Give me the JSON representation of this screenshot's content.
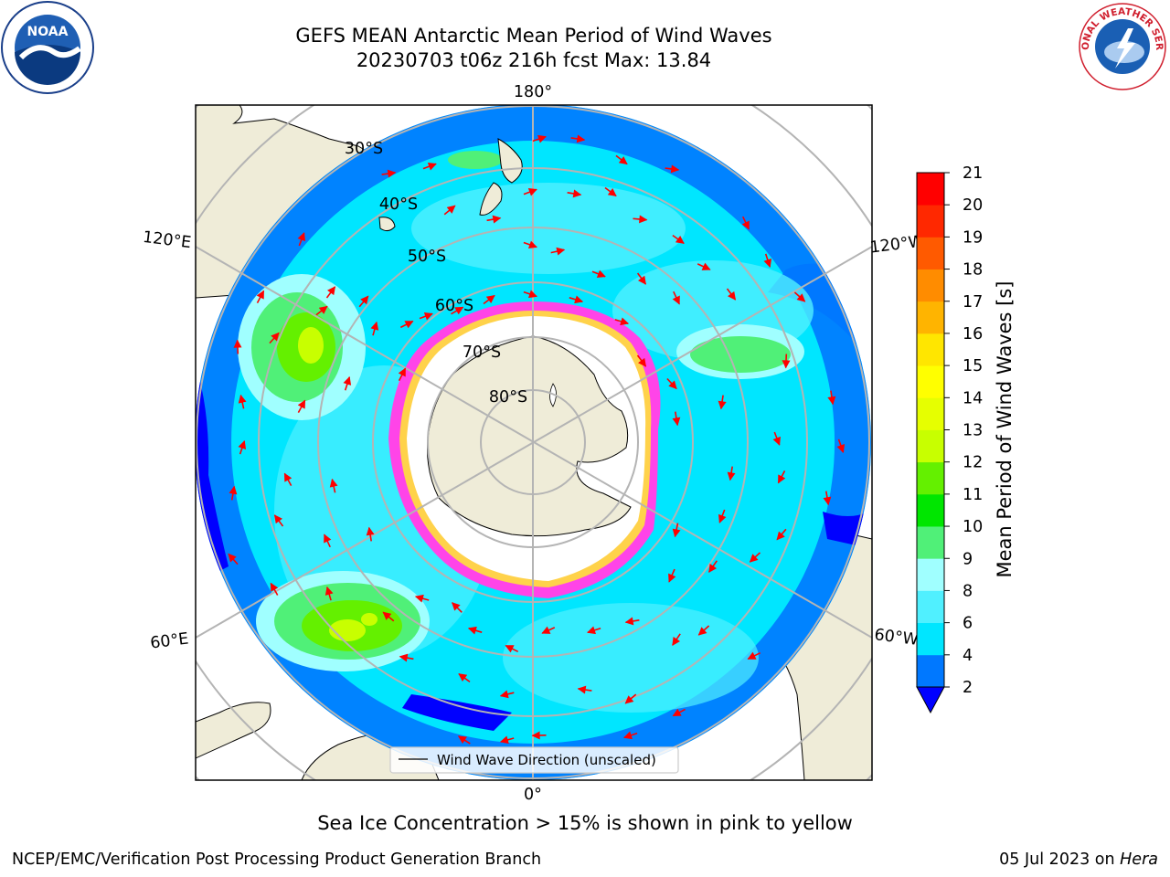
{
  "header": {
    "title_line1": "GEFS MEAN Antarctic Mean Period of Wind Waves",
    "title_line2": "20230703 t06z 216h fcst   Max: 13.84"
  },
  "logos": {
    "left": {
      "icon": "noaa-logo-icon",
      "text": "NOAA"
    },
    "right": {
      "icon": "nws-logo-icon",
      "ring_text": "NATIONAL WEATHER SERVICE"
    }
  },
  "map": {
    "projection": "south-polar-stereographic",
    "lon_labels": {
      "top": "180°",
      "bottom": "0°",
      "upper_left": "120°E",
      "upper_right": "120°W",
      "lower_left": "60°E",
      "lower_right": "60°W"
    },
    "lat_labels": [
      "30°S",
      "40°S",
      "50°S",
      "60°S",
      "70°S",
      "80°S"
    ],
    "legend_label": "Wind Wave Direction (unscaled)",
    "colors": {
      "land": "#efecd8",
      "ice_edge": "#ff44e8",
      "arrows": "#ff0000",
      "grid": "#b4b4b4"
    }
  },
  "colorbar": {
    "label": "Mean Period of Wind Waves [s]",
    "ticks": [
      "2",
      "4",
      "6",
      "8",
      "9",
      "10",
      "11",
      "12",
      "13",
      "14",
      "15",
      "16",
      "17",
      "18",
      "19",
      "20",
      "21"
    ],
    "colors": [
      "#0078ff",
      "#00e6ff",
      "#50f0ff",
      "#a0ffff",
      "#50f078",
      "#00e600",
      "#64f000",
      "#c8ff00",
      "#e6ff00",
      "#ffff00",
      "#ffe600",
      "#ffb400",
      "#ff8c00",
      "#ff5a00",
      "#ff2800",
      "#ff0000"
    ],
    "under_color": "#0000ff"
  },
  "note": "Sea Ice Concentration > 15% is shown in pink to yellow",
  "footer": {
    "left": "NCEP/EMC/Verification Post Processing Product Generation Branch",
    "right_date": "05 Jul 2023 on ",
    "right_host": "Hera"
  }
}
